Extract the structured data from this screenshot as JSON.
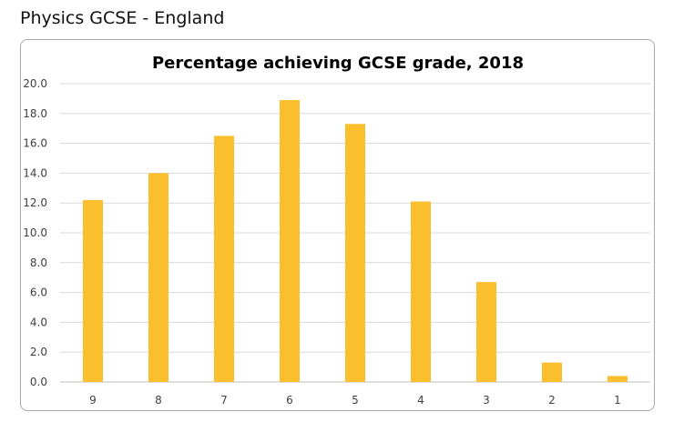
{
  "page": {
    "heading": "Physics GCSE - England"
  },
  "chart_data": {
    "type": "bar",
    "title": "Percentage achieving GCSE grade, 2018",
    "xlabel": "",
    "ylabel": "",
    "categories": [
      "9",
      "8",
      "7",
      "6",
      "5",
      "4",
      "3",
      "2",
      "1"
    ],
    "values": [
      12.2,
      14.0,
      16.5,
      18.9,
      17.3,
      12.1,
      6.7,
      1.3,
      0.4
    ],
    "ylim": [
      0,
      20
    ],
    "yticks": [
      "0.0",
      "2.0",
      "4.0",
      "6.0",
      "8.0",
      "10.0",
      "12.0",
      "14.0",
      "16.0",
      "18.0",
      "20.0"
    ],
    "grid": true,
    "legend": "none",
    "bar_color": "#FBBF2D",
    "grid_color": "#D9D9D9"
  }
}
